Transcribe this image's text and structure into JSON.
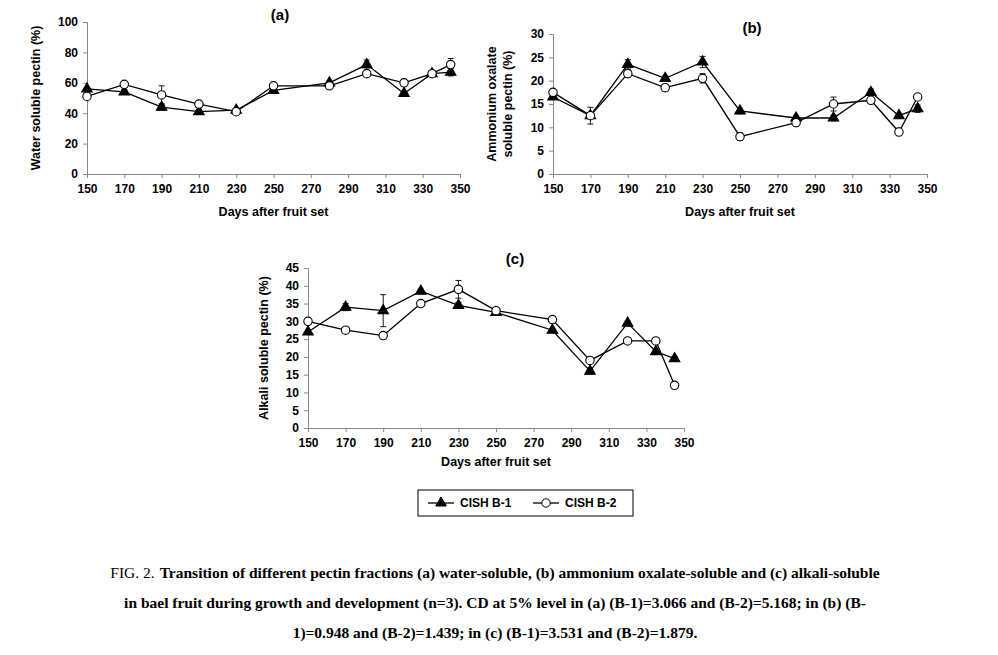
{
  "chart_data": [
    {
      "type": "line",
      "title": "(a)",
      "x_label": "Days after fruit set",
      "y_label": [
        "Water soluble pectin (%)"
      ],
      "x": [
        150,
        170,
        190,
        210,
        230,
        250,
        280,
        300,
        320,
        335,
        345
      ],
      "xlim": [
        150,
        350
      ],
      "xticks": [
        150,
        170,
        190,
        210,
        230,
        250,
        270,
        290,
        310,
        330,
        350
      ],
      "ylim": [
        0,
        100
      ],
      "yticks": [
        0,
        20,
        40,
        60,
        80,
        100
      ],
      "grid": false,
      "series": [
        {
          "name": "CISH B-1",
          "color": "#000000",
          "marker": "triangle",
          "line_style": "solid",
          "values": [
            56,
            54,
            44,
            41,
            42,
            55,
            60,
            72,
            53,
            66,
            67
          ],
          "errors": [
            1,
            1.5,
            2,
            1.5,
            1,
            1.5,
            1,
            3,
            1.5,
            1,
            2.5
          ]
        },
        {
          "name": "CISH B-2",
          "color": "#000000",
          "marker": "circle-open",
          "line_style": "solid",
          "values": [
            51,
            59,
            52,
            46,
            41,
            58,
            58,
            66,
            60,
            66,
            72
          ],
          "errors": [
            1.5,
            1,
            6,
            1.5,
            1,
            1,
            1,
            1.5,
            1.5,
            1,
            4
          ]
        }
      ]
    },
    {
      "type": "line",
      "title": "(b)",
      "x_label": "Days after fruit set",
      "y_label": [
        "Ammonium  oxalate",
        "soluble pectin (%)"
      ],
      "x": [
        150,
        170,
        190,
        210,
        230,
        250,
        280,
        300,
        320,
        335,
        345
      ],
      "xlim": [
        150,
        350
      ],
      "xticks": [
        150,
        170,
        190,
        210,
        230,
        250,
        270,
        290,
        310,
        330,
        350
      ],
      "ylim": [
        0,
        30
      ],
      "yticks": [
        0,
        5,
        10,
        15,
        20,
        25,
        30
      ],
      "grid": false,
      "series": [
        {
          "name": "CISH B-1",
          "color": "#000000",
          "marker": "triangle",
          "line_style": "solid",
          "values": [
            16.5,
            12.5,
            23.5,
            20.5,
            24,
            13.5,
            12,
            12,
            17.5,
            12.5,
            14
          ],
          "errors": [
            0.5,
            0.5,
            1,
            0.5,
            1.2,
            0.6,
            0.4,
            0.6,
            0.7,
            0.5,
            0.8
          ]
        },
        {
          "name": "CISH B-2",
          "color": "#000000",
          "marker": "circle-open",
          "line_style": "solid",
          "values": [
            17.5,
            12.5,
            21.5,
            18.5,
            20.5,
            8,
            11,
            15,
            15.8,
            9,
            16.5
          ],
          "errors": [
            0.5,
            1.8,
            0.8,
            0.7,
            1,
            0.8,
            0.8,
            1.5,
            0.6,
            0.8,
            0.3
          ]
        }
      ]
    },
    {
      "type": "line",
      "title": "(c)",
      "x_label": "Days after fruit set",
      "y_label": [
        "Alkali soluble pectin (%)"
      ],
      "x": [
        150,
        170,
        190,
        210,
        230,
        250,
        280,
        300,
        320,
        335,
        345
      ],
      "xlim": [
        150,
        350
      ],
      "xticks": [
        150,
        170,
        190,
        210,
        230,
        250,
        270,
        290,
        310,
        330,
        350
      ],
      "ylim": [
        0,
        45
      ],
      "yticks": [
        0,
        5,
        10,
        15,
        20,
        25,
        30,
        35,
        40,
        45
      ],
      "grid": false,
      "legend": "bottom",
      "series": [
        {
          "name": "CISH B-1",
          "color": "#000000",
          "marker": "triangle",
          "line_style": "solid",
          "values": [
            27,
            34,
            33,
            38.5,
            34.5,
            32.5,
            27.5,
            16,
            29.5,
            21.5,
            19.5
          ],
          "errors": [
            0.6,
            1,
            4.5,
            0.5,
            0.8,
            0.6,
            0.5,
            0.8,
            0.6,
            0.7,
            0.6
          ]
        },
        {
          "name": "CISH B-2",
          "color": "#000000",
          "marker": "circle-open",
          "line_style": "solid",
          "values": [
            30,
            27.5,
            26,
            35,
            39,
            33,
            30.5,
            19,
            24.5,
            24.5,
            12
          ],
          "errors": [
            0.6,
            0.8,
            0.6,
            0.5,
            2.5,
            0.8,
            0.6,
            0.8,
            0.6,
            0.8,
            0.6
          ]
        }
      ]
    }
  ],
  "caption": {
    "label": "FIG. 2.",
    "lines": [
      "Transition of different pectin fractions (a) water-soluble, (b) ammonium oxalate-soluble and (c) alkali-soluble",
      "in bael fruit during growth and development (n=3). CD at 5% level in (a) (B-1)=3.066 and (B-2)=5.168; in (b) (B-",
      "1)=0.948 and (B-2)=1.439; in (c) (B-1)=3.531 and (B-2)=1.879."
    ]
  }
}
